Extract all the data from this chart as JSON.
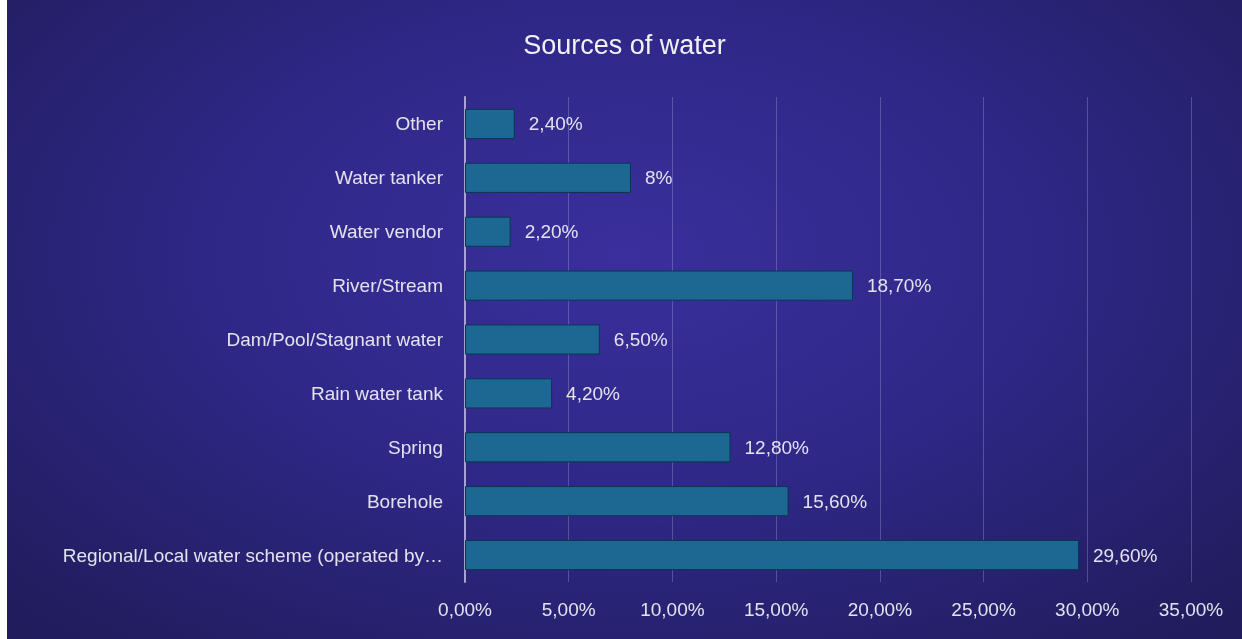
{
  "chart_data": {
    "type": "bar",
    "orientation": "horizontal",
    "title": "Sources of water",
    "categories": [
      "Other",
      "Water tanker",
      "Water vendor",
      "River/Stream",
      "Dam/Pool/Stagnant water",
      "Rain water tank",
      "Spring",
      "Borehole",
      "Regional/Local water scheme (operated by…"
    ],
    "values": [
      2.4,
      8,
      2.2,
      18.7,
      6.5,
      4.2,
      12.8,
      15.6,
      29.6
    ],
    "value_labels": [
      "2,40%",
      "8%",
      "2,20%",
      "18,70%",
      "6,50%",
      "4,20%",
      "12,80%",
      "15,60%",
      "29,60%"
    ],
    "color": "#1c6892",
    "xlim": [
      0,
      35
    ],
    "xticks": [
      {
        "value": 0,
        "label": "0,00%"
      },
      {
        "value": 5,
        "label": "5,00%"
      },
      {
        "value": 10,
        "label": "10,00%"
      },
      {
        "value": 15,
        "label": "15,00%"
      },
      {
        "value": 20,
        "label": "20,00%"
      },
      {
        "value": 25,
        "label": "25,00%"
      },
      {
        "value": 30,
        "label": "30,00%"
      },
      {
        "value": 35,
        "label": "35,00%"
      }
    ],
    "grid": "x"
  }
}
